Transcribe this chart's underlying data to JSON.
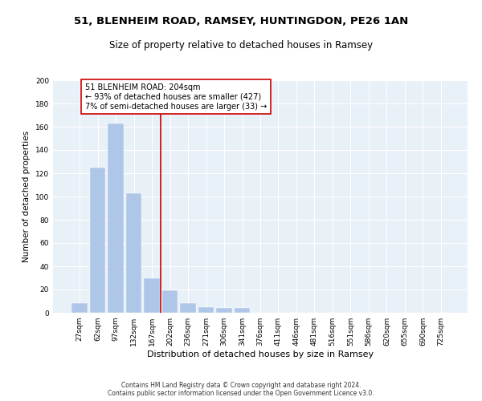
{
  "title1": "51, BLENHEIM ROAD, RAMSEY, HUNTINGDON, PE26 1AN",
  "title2": "Size of property relative to detached houses in Ramsey",
  "xlabel": "Distribution of detached houses by size in Ramsey",
  "ylabel": "Number of detached properties",
  "categories": [
    "27sqm",
    "62sqm",
    "97sqm",
    "132sqm",
    "167sqm",
    "202sqm",
    "236sqm",
    "271sqm",
    "306sqm",
    "341sqm",
    "376sqm",
    "411sqm",
    "446sqm",
    "481sqm",
    "516sqm",
    "551sqm",
    "586sqm",
    "620sqm",
    "655sqm",
    "690sqm",
    "725sqm"
  ],
  "values": [
    8,
    125,
    163,
    103,
    30,
    19,
    8,
    5,
    4,
    4,
    0,
    0,
    0,
    0,
    0,
    0,
    0,
    0,
    0,
    0,
    0
  ],
  "bar_color": "#aec6e8",
  "bar_edge_color": "#aec6e8",
  "vline_color": "#cc0000",
  "annotation_text": "51 BLENHEIM ROAD: 204sqm\n← 93% of detached houses are smaller (427)\n7% of semi-detached houses are larger (33) →",
  "annotation_box_color": "#ffffff",
  "annotation_box_edge": "#cc0000",
  "ylim": [
    0,
    200
  ],
  "yticks": [
    0,
    20,
    40,
    60,
    80,
    100,
    120,
    140,
    160,
    180,
    200
  ],
  "background_color": "#e8f0f8",
  "footer": "Contains HM Land Registry data © Crown copyright and database right 2024.\nContains public sector information licensed under the Open Government Licence v3.0.",
  "title1_fontsize": 9.5,
  "title2_fontsize": 8.5,
  "xlabel_fontsize": 8,
  "ylabel_fontsize": 7.5,
  "tick_fontsize": 6.5,
  "annotation_fontsize": 7,
  "footer_fontsize": 5.5
}
